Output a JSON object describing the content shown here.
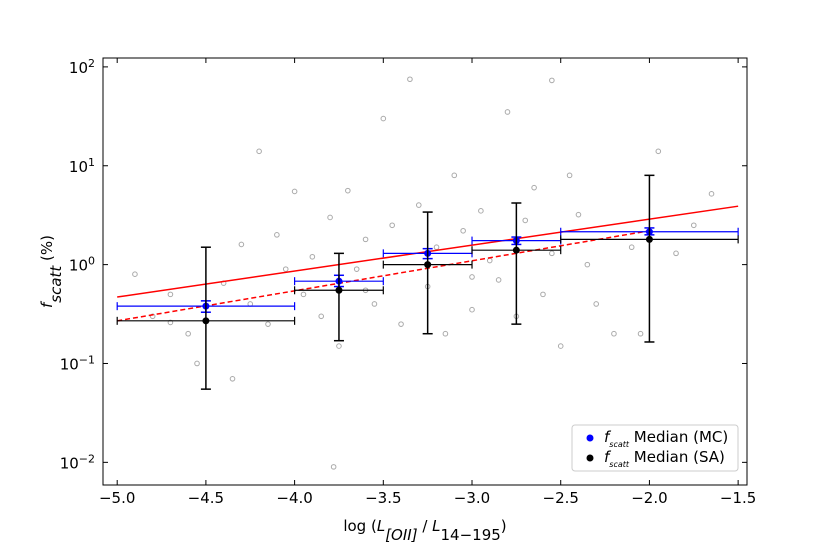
{
  "chart_data": {
    "type": "scatter",
    "log_y": true,
    "xlabel": [
      {
        "text": "log ("
      },
      {
        "text": "L",
        "italic": true
      },
      {
        "text": "[OII]",
        "italic": true,
        "sub": true
      },
      {
        "text": " / "
      },
      {
        "text": "L",
        "italic": true
      },
      {
        "text": "14−195",
        "sub": true
      },
      {
        "text": ")"
      }
    ],
    "ylabel": [
      {
        "text": "f",
        "italic": true
      },
      {
        "text": "scatt",
        "italic": true,
        "sub": true
      },
      {
        "text": "  (%)"
      }
    ],
    "xlim": [
      -5.08,
      -1.45
    ],
    "ylim": [
      0.0059,
      123
    ],
    "xticks": [
      {
        "value": -5,
        "label": "−5.0"
      },
      {
        "value": -4.5,
        "label": "−4.5"
      },
      {
        "value": -4,
        "label": "−4.0"
      },
      {
        "value": -3.5,
        "label": "−3.5"
      },
      {
        "value": -3,
        "label": "−3.0"
      },
      {
        "value": -2.5,
        "label": "−2.5"
      },
      {
        "value": -2,
        "label": "−2.0"
      },
      {
        "value": -1.5,
        "label": "−1.5"
      }
    ],
    "yticks": [
      {
        "value": 0.01,
        "label": "10",
        "exponent": "−2"
      },
      {
        "value": 0.1,
        "label": "10",
        "exponent": "−1"
      },
      {
        "value": 1,
        "label": "10",
        "exponent": "0"
      },
      {
        "value": 10,
        "label": "10",
        "exponent": "1"
      },
      {
        "value": 100,
        "label": "10",
        "exponent": "2"
      }
    ],
    "legend": "lower right",
    "points": {
      "color": "#aaaaaa",
      "x": [
        -4.9,
        -4.8,
        -4.7,
        -4.6,
        -4.55,
        -4.4,
        -4.35,
        -4.3,
        -4.25,
        -4.2,
        -4.15,
        -4.1,
        -4.05,
        -4.0,
        -3.95,
        -3.9,
        -3.85,
        -3.8,
        -3.75,
        -3.7,
        -3.65,
        -3.6,
        -3.55,
        -3.5,
        -3.45,
        -3.4,
        -3.35,
        -3.3,
        -3.25,
        -3.2,
        -3.15,
        -3.1,
        -3.05,
        -3.0,
        -2.95,
        -2.9,
        -2.85,
        -2.8,
        -2.75,
        -2.7,
        -2.65,
        -2.6,
        -2.55,
        -2.5,
        -2.45,
        -2.4,
        -2.35,
        -2.3,
        -2.2,
        -2.1,
        -2.05,
        -1.95,
        -1.85,
        -1.75,
        -1.65,
        -2.55,
        -3.78,
        -4.7,
        -3.6,
        -3.0
      ],
      "y": [
        0.8,
        0.3,
        0.5,
        0.2,
        0.1,
        0.65,
        0.07,
        1.6,
        0.4,
        14,
        0.25,
        2.0,
        0.9,
        5.5,
        0.5,
        1.2,
        0.3,
        3.0,
        0.15,
        5.6,
        0.9,
        1.8,
        0.4,
        30,
        2.5,
        0.25,
        75,
        4.0,
        0.6,
        1.5,
        0.2,
        8,
        2.2,
        0.35,
        3.5,
        1.1,
        0.7,
        35,
        0.3,
        2.8,
        6,
        0.5,
        1.3,
        0.15,
        8,
        3.2,
        1.0,
        0.4,
        0.2,
        1.5,
        0.2,
        14,
        1.3,
        2.5,
        5.2,
        73,
        0.009,
        0.26,
        0.55,
        0.75
      ]
    },
    "series": [
      {
        "name": [
          {
            "text": "f",
            "italic": true
          },
          {
            "text": "scatt",
            "italic": true,
            "sub": true
          },
          {
            "text": " Median (MC)"
          }
        ],
        "color": "#0000ff",
        "x": [
          -4.5,
          -3.75,
          -3.25,
          -2.75,
          -2.0
        ],
        "xlow": [
          -5,
          -4,
          -3.5,
          -3,
          -2.5
        ],
        "xhigh": [
          -4,
          -3.5,
          -3,
          -2.5,
          -1.5
        ],
        "values": [
          0.38,
          0.68,
          1.3,
          1.75,
          2.15
        ],
        "ylow": [
          0.33,
          0.6,
          1.15,
          1.6,
          2.0
        ],
        "yhigh": [
          0.43,
          0.78,
          1.45,
          1.9,
          2.35
        ]
      },
      {
        "name": [
          {
            "text": "f",
            "italic": true
          },
          {
            "text": "scatt",
            "italic": true,
            "sub": true
          },
          {
            "text": " Median (SA)"
          }
        ],
        "color": "#000000",
        "x": [
          -4.5,
          -3.75,
          -3.25,
          -2.75,
          -2.0
        ],
        "xlow": [
          -5,
          -4,
          -3.5,
          -3,
          -2.5
        ],
        "xhigh": [
          -4,
          -3.5,
          -3,
          -2.5,
          -1.5
        ],
        "values": [
          0.27,
          0.55,
          1.0,
          1.4,
          1.8
        ],
        "ylow": [
          0.055,
          0.17,
          0.2,
          0.25,
          0.165
        ],
        "yhigh": [
          1.5,
          1.3,
          3.4,
          4.2,
          8.0
        ]
      }
    ],
    "fits": [
      {
        "color": "#ff0000",
        "dash": false,
        "x": [
          -5,
          -1.5
        ],
        "values": [
          0.47,
          3.9
        ]
      },
      {
        "color": "#ff0000",
        "dash": true,
        "x": [
          -5,
          -2.0
        ],
        "values": [
          0.27,
          2.2
        ]
      }
    ]
  }
}
